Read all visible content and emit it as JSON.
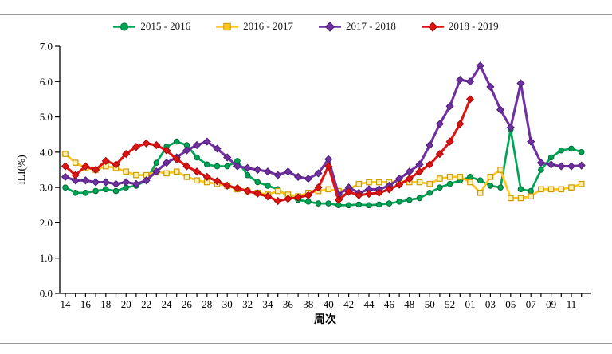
{
  "legend": [
    {
      "label": "2015 - 2016",
      "color": "#00A455",
      "stroke": "#007A3E",
      "marker": "circle"
    },
    {
      "label": "2016 - 2017",
      "color": "#FFC61E",
      "stroke": "#C9940A",
      "marker": "square"
    },
    {
      "label": "2017 - 2018",
      "color": "#7030A0",
      "stroke": "#4B1E78",
      "marker": "diamond"
    },
    {
      "label": "2018 - 2019",
      "color": "#DE1414",
      "stroke": "#9E0B0B",
      "marker": "diamond"
    }
  ],
  "chart_data": {
    "type": "line",
    "title": "",
    "xlabel": "周次",
    "ylabel": "ILI(%)",
    "ylim": [
      0.0,
      7.0
    ],
    "ytick_step": 1.0,
    "ytick_labels": [
      "0.0",
      "1.0",
      "2.0",
      "3.0",
      "4.0",
      "5.0",
      "6.0",
      "7.0"
    ],
    "x_week_count": 52,
    "x_labels": [
      "14",
      "16",
      "18",
      "20",
      "22",
      "24",
      "26",
      "28",
      "30",
      "32",
      "34",
      "36",
      "38",
      "40",
      "42",
      "44",
      "46",
      "48",
      "50",
      "52",
      "01",
      "03",
      "05",
      "07",
      "09",
      "11"
    ],
    "grid": false,
    "legend_position": "top-center",
    "series": [
      {
        "name": "2015 - 2016",
        "marker": "circle",
        "line_color": "#00A455",
        "marker_fill": "#00A455",
        "marker_stroke": "#006B38",
        "line_width": 2.7,
        "values": [
          3.0,
          2.85,
          2.85,
          2.9,
          2.95,
          2.9,
          3.0,
          3.05,
          3.2,
          3.7,
          4.15,
          4.3,
          4.2,
          3.85,
          3.65,
          3.6,
          3.6,
          3.75,
          3.35,
          3.15,
          3.05,
          2.95,
          2.75,
          2.65,
          2.6,
          2.55,
          2.55,
          2.5,
          2.5,
          2.52,
          2.5,
          2.52,
          2.55,
          2.6,
          2.65,
          2.7,
          2.85,
          3.0,
          3.1,
          3.2,
          3.3,
          3.2,
          3.05,
          3.0,
          4.65,
          2.95,
          2.9,
          3.5,
          3.85,
          4.05,
          4.1,
          4.0
        ]
      },
      {
        "name": "2016 - 2017",
        "marker": "square",
        "line_color": "#FFC61E",
        "marker_fill": "#FFEFB0",
        "marker_stroke": "#CC9900",
        "line_width": 2.7,
        "values": [
          3.95,
          3.7,
          3.55,
          3.5,
          3.6,
          3.55,
          3.45,
          3.35,
          3.35,
          3.45,
          3.4,
          3.45,
          3.3,
          3.2,
          3.15,
          3.1,
          3.05,
          2.95,
          2.9,
          2.85,
          2.8,
          2.9,
          2.8,
          2.75,
          2.85,
          2.9,
          2.95,
          2.9,
          2.95,
          3.1,
          3.15,
          3.15,
          3.15,
          3.18,
          3.15,
          3.15,
          3.1,
          3.25,
          3.3,
          3.3,
          3.15,
          2.85,
          3.3,
          3.5,
          2.7,
          2.7,
          2.75,
          2.95,
          2.95,
          2.95,
          3.0,
          3.1
        ]
      },
      {
        "name": "2017 - 2018",
        "marker": "diamond",
        "line_color": "#7030A0",
        "marker_fill": "#7030A0",
        "marker_stroke": "#4B1E78",
        "line_width": 3.1,
        "values": [
          3.3,
          3.2,
          3.2,
          3.15,
          3.15,
          3.1,
          3.15,
          3.1,
          3.2,
          3.45,
          3.7,
          3.85,
          4.05,
          4.2,
          4.3,
          4.1,
          3.85,
          3.6,
          3.55,
          3.5,
          3.45,
          3.35,
          3.45,
          3.3,
          3.25,
          3.4,
          3.8,
          2.8,
          3.0,
          2.85,
          2.95,
          2.95,
          3.05,
          3.25,
          3.45,
          3.65,
          4.2,
          4.8,
          5.3,
          6.05,
          6.0,
          6.45,
          5.85,
          5.2,
          4.7,
          5.95,
          4.3,
          3.7,
          3.65,
          3.6,
          3.6,
          3.62
        ]
      },
      {
        "name": "2018 - 2019",
        "marker": "diamond",
        "line_color": "#DE1414",
        "marker_fill": "#DE1414",
        "marker_stroke": "#9E0B0B",
        "line_width": 3.1,
        "values": [
          3.6,
          3.35,
          3.6,
          3.5,
          3.75,
          3.65,
          3.95,
          4.15,
          4.25,
          4.2,
          4.05,
          3.8,
          3.6,
          3.45,
          3.3,
          3.18,
          3.05,
          2.98,
          2.9,
          2.83,
          2.75,
          2.62,
          2.68,
          2.72,
          2.78,
          3.0,
          3.6,
          2.65,
          2.88,
          2.78,
          2.82,
          2.85,
          2.95,
          3.08,
          3.25,
          3.45,
          3.65,
          3.95,
          4.3,
          4.8,
          5.5
        ]
      }
    ]
  }
}
